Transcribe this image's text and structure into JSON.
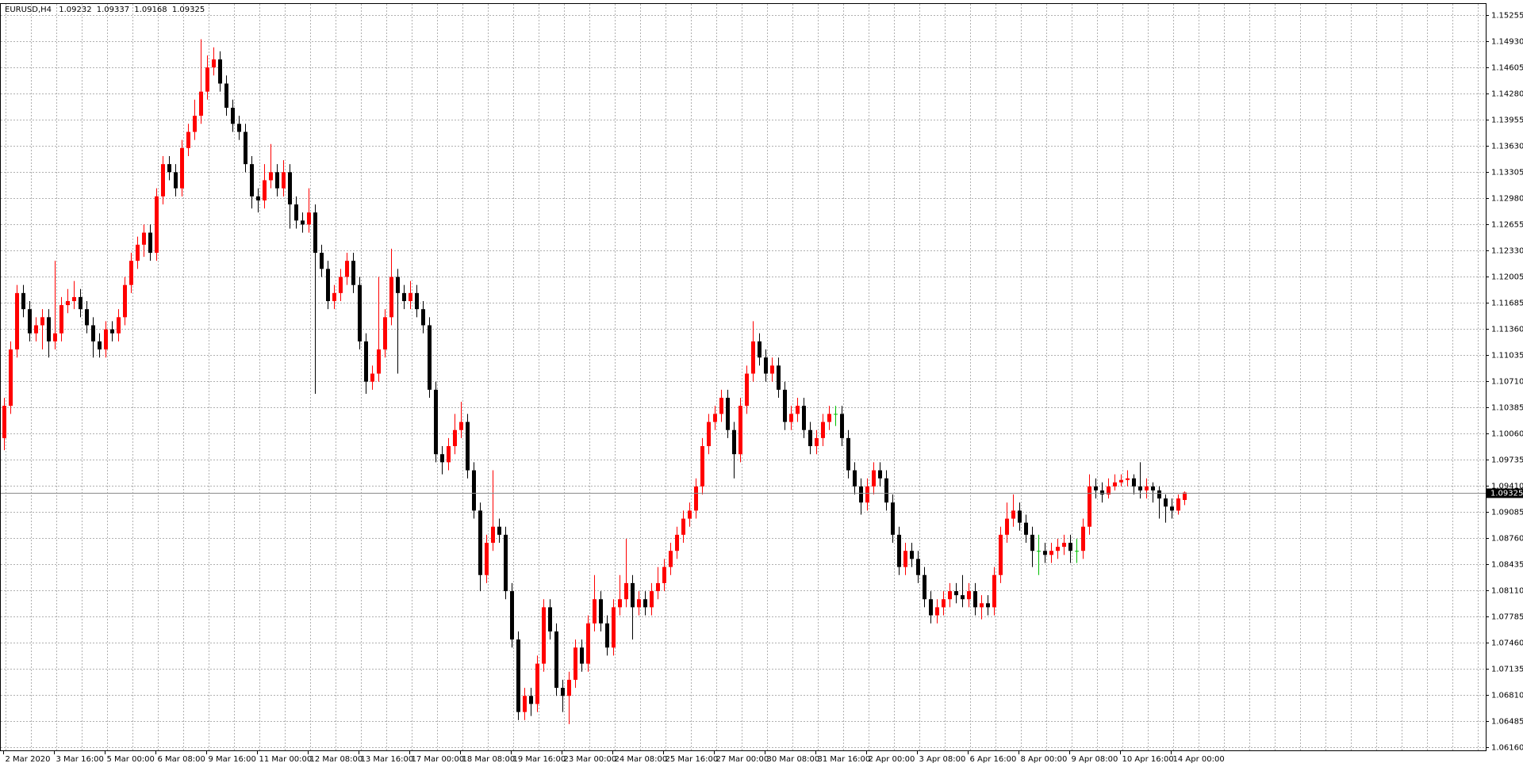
{
  "chart_data": {
    "type": "candlestick",
    "symbol": "EURUSD,H4",
    "up_color": "#ff0000",
    "down_color": "#000000",
    "doji_color": "#00c000",
    "grid": true,
    "ylim": [
      1.06124,
      1.15388
    ],
    "yticks": [
      1.15255,
      {
        "value": 1.1493,
        "label": "1.14930"
      },
      1.14605,
      {
        "value": 1.1428,
        "label": "1.14280"
      },
      1.13955,
      {
        "value": 1.1363,
        "label": "1.13630"
      },
      1.13305,
      {
        "value": 1.1298,
        "label": "1.12980"
      },
      1.12655,
      {
        "value": 1.1233,
        "label": "1.12330"
      },
      1.12005,
      1.11685,
      {
        "value": 1.1136,
        "label": "1.11360"
      },
      1.11035,
      {
        "value": 1.1071,
        "label": "1.10710"
      },
      1.10385,
      {
        "value": 1.1006,
        "label": "1.10060"
      },
      1.09735,
      {
        "value": 1.0941,
        "label": "1.09410"
      },
      1.09085,
      {
        "value": 1.0876,
        "label": "1.08760"
      },
      1.08435,
      {
        "value": 1.0811,
        "label": "1.08110"
      },
      1.07785,
      {
        "value": 1.0746,
        "label": "1.07460"
      },
      1.07135,
      {
        "value": 1.0681,
        "label": "1.06810"
      },
      1.06485,
      {
        "value": 1.0616,
        "label": "1.06160"
      }
    ],
    "categories": [
      "2 Mar 2020",
      null,
      null,
      null,
      null,
      null,
      null,
      null,
      "3 Mar 16:00",
      null,
      null,
      null,
      null,
      null,
      null,
      null,
      "5 Mar 00:00",
      null,
      null,
      null,
      null,
      null,
      null,
      null,
      "6 Mar 08:00",
      null,
      null,
      null,
      null,
      null,
      null,
      null,
      "9 Mar 16:00",
      null,
      null,
      null,
      null,
      null,
      null,
      null,
      "11 Mar 00:00",
      null,
      null,
      null,
      null,
      null,
      null,
      null,
      "12 Mar 08:00",
      null,
      null,
      null,
      null,
      null,
      null,
      null,
      "13 Mar 16:00",
      null,
      null,
      null,
      null,
      null,
      null,
      null,
      "17 Mar 00:00",
      null,
      null,
      null,
      null,
      null,
      null,
      null,
      "18 Mar 08:00",
      null,
      null,
      null,
      null,
      null,
      null,
      null,
      "19 Mar 16:00",
      null,
      null,
      null,
      null,
      null,
      null,
      null,
      "23 Mar 00:00",
      null,
      null,
      null,
      null,
      null,
      null,
      null,
      "24 Mar 08:00",
      null,
      null,
      null,
      null,
      null,
      null,
      null,
      "25 Mar 16:00",
      null,
      null,
      null,
      null,
      null,
      null,
      null,
      "27 Mar 00:00",
      null,
      null,
      null,
      null,
      null,
      null,
      null,
      "30 Mar 08:00",
      null,
      null,
      null,
      null,
      null,
      null,
      null,
      "31 Mar 16:00",
      null,
      null,
      null,
      null,
      null,
      null,
      null,
      "2 Apr 00:00",
      null,
      null,
      null,
      null,
      null,
      null,
      null,
      "3 Apr 08:00",
      null,
      null,
      null,
      null,
      null,
      null,
      null,
      "6 Apr 16:00",
      null,
      null,
      null,
      null,
      null,
      null,
      null,
      "8 Apr 00:00",
      null,
      null,
      null,
      null,
      null,
      null,
      null,
      "9 Apr 08:00",
      null,
      null,
      null,
      null,
      null,
      null,
      null,
      "10 Apr 16:00",
      null,
      null,
      null,
      null,
      null,
      null,
      null,
      "14 Apr 00:00",
      null,
      null
    ],
    "candles": [
      [
        1.1,
        1.105,
        1.0985,
        1.104
      ],
      [
        1.104,
        1.112,
        1.103,
        1.111
      ],
      [
        1.111,
        1.119,
        1.11,
        1.118
      ],
      [
        1.118,
        1.119,
        1.115,
        1.116
      ],
      [
        1.116,
        1.117,
        1.112,
        1.113
      ],
      [
        1.113,
        1.115,
        1.112,
        1.114
      ],
      [
        1.114,
        1.116,
        1.111,
        1.115
      ],
      [
        1.115,
        1.116,
        1.11,
        1.112
      ],
      [
        1.112,
        1.122,
        1.111,
        1.113
      ],
      [
        1.113,
        1.1175,
        1.112,
        1.1165
      ],
      [
        1.1165,
        1.1185,
        1.1155,
        1.117
      ],
      [
        1.117,
        1.1195,
        1.116,
        1.1175
      ],
      [
        1.1175,
        1.1185,
        1.115,
        1.116
      ],
      [
        1.116,
        1.117,
        1.113,
        1.114
      ],
      [
        1.114,
        1.115,
        1.11,
        1.112
      ],
      [
        1.112,
        1.113,
        1.11,
        1.111
      ],
      [
        1.111,
        1.1145,
        1.11,
        1.1135
      ],
      [
        1.1135,
        1.1145,
        1.112,
        1.113
      ],
      [
        1.113,
        1.116,
        1.112,
        1.115
      ],
      [
        1.115,
        1.12,
        1.114,
        1.119
      ],
      [
        1.119,
        1.123,
        1.118,
        1.122
      ],
      [
        1.122,
        1.125,
        1.121,
        1.124
      ],
      [
        1.124,
        1.1265,
        1.1225,
        1.1255
      ],
      [
        1.1255,
        1.1265,
        1.122,
        1.123
      ],
      [
        1.123,
        1.131,
        1.122,
        1.13
      ],
      [
        1.13,
        1.135,
        1.129,
        1.134
      ],
      [
        1.134,
        1.135,
        1.132,
        1.133
      ],
      [
        1.133,
        1.134,
        1.13,
        1.131
      ],
      [
        1.131,
        1.137,
        1.13,
        1.136
      ],
      [
        1.136,
        1.139,
        1.135,
        1.138
      ],
      [
        1.138,
        1.142,
        1.137,
        1.14
      ],
      [
        1.14,
        1.1495,
        1.139,
        1.143
      ],
      [
        1.143,
        1.1475,
        1.142,
        1.146
      ],
      [
        1.146,
        1.1485,
        1.145,
        1.147
      ],
      [
        1.147,
        1.148,
        1.143,
        1.144
      ],
      [
        1.144,
        1.145,
        1.14,
        1.141
      ],
      [
        1.141,
        1.142,
        1.138,
        1.139
      ],
      [
        1.139,
        1.14,
        1.137,
        1.138
      ],
      [
        1.138,
        1.139,
        1.133,
        1.134
      ],
      [
        1.134,
        1.135,
        1.1285,
        1.13
      ],
      [
        1.13,
        1.131,
        1.128,
        1.1295
      ],
      [
        1.1295,
        1.134,
        1.1285,
        1.132
      ],
      [
        1.132,
        1.1365,
        1.131,
        1.133
      ],
      [
        1.133,
        1.134,
        1.13,
        1.131
      ],
      [
        1.131,
        1.1345,
        1.13,
        1.133
      ],
      [
        1.133,
        1.134,
        1.126,
        1.129
      ],
      [
        1.129,
        1.13,
        1.126,
        1.127
      ],
      [
        1.127,
        1.128,
        1.1255,
        1.1265
      ],
      [
        1.1265,
        1.131,
        1.1255,
        1.128
      ],
      [
        1.128,
        1.129,
        1.1055,
        1.123
      ],
      [
        1.123,
        1.124,
        1.12,
        1.121
      ],
      [
        1.121,
        1.122,
        1.116,
        1.117
      ],
      [
        1.117,
        1.119,
        1.116,
        1.118
      ],
      [
        1.118,
        1.121,
        1.117,
        1.12
      ],
      [
        1.12,
        1.123,
        1.119,
        1.122
      ],
      [
        1.122,
        1.123,
        1.118,
        1.119
      ],
      [
        1.119,
        1.12,
        1.111,
        1.112
      ],
      [
        1.112,
        1.113,
        1.1055,
        1.107
      ],
      [
        1.107,
        1.109,
        1.106,
        1.108
      ],
      [
        1.108,
        1.12,
        1.107,
        1.111
      ],
      [
        1.111,
        1.116,
        1.11,
        1.115
      ],
      [
        1.115,
        1.1235,
        1.114,
        1.12
      ],
      [
        1.12,
        1.121,
        1.108,
        1.118
      ],
      [
        1.118,
        1.119,
        1.116,
        1.117
      ],
      [
        1.117,
        1.1195,
        1.116,
        1.118
      ],
      [
        1.118,
        1.119,
        1.115,
        1.116
      ],
      [
        1.116,
        1.117,
        1.113,
        1.114
      ],
      [
        1.114,
        1.115,
        1.105,
        1.106
      ],
      [
        1.106,
        1.107,
        1.097,
        1.098
      ],
      [
        1.098,
        1.099,
        1.0955,
        1.097
      ],
      [
        1.097,
        1.1,
        1.096,
        1.099
      ],
      [
        1.099,
        1.103,
        1.098,
        1.101
      ],
      [
        1.101,
        1.1045,
        1.1,
        1.102
      ],
      [
        1.102,
        1.103,
        1.095,
        1.096
      ],
      [
        1.096,
        1.097,
        1.09,
        1.091
      ],
      [
        1.091,
        1.092,
        1.081,
        1.083
      ],
      [
        1.083,
        1.088,
        1.082,
        1.087
      ],
      [
        1.087,
        1.096,
        1.086,
        1.089
      ],
      [
        1.089,
        1.09,
        1.087,
        1.088
      ],
      [
        1.088,
        1.089,
        1.08,
        1.081
      ],
      [
        1.081,
        1.082,
        1.074,
        1.075
      ],
      [
        1.075,
        1.076,
        1.065,
        1.066
      ],
      [
        1.066,
        1.069,
        1.065,
        1.068
      ],
      [
        1.068,
        1.069,
        1.0655,
        1.067
      ],
      [
        1.067,
        1.073,
        1.066,
        1.072
      ],
      [
        1.072,
        1.08,
        1.071,
        1.079
      ],
      [
        1.079,
        1.08,
        1.075,
        1.076
      ],
      [
        1.076,
        1.077,
        1.068,
        1.069
      ],
      [
        1.069,
        1.07,
        1.066,
        1.068
      ],
      [
        1.068,
        1.071,
        1.0645,
        1.07
      ],
      [
        1.07,
        1.075,
        1.069,
        1.074
      ],
      [
        1.074,
        1.075,
        1.071,
        1.072
      ],
      [
        1.072,
        1.078,
        1.071,
        1.077
      ],
      [
        1.077,
        1.083,
        1.076,
        1.08
      ],
      [
        1.08,
        1.081,
        1.076,
        1.077
      ],
      [
        1.077,
        1.078,
        1.073,
        1.074
      ],
      [
        1.074,
        1.08,
        1.073,
        1.079
      ],
      [
        1.079,
        1.083,
        1.078,
        1.08
      ],
      [
        1.08,
        1.0875,
        1.079,
        1.082
      ],
      [
        1.082,
        1.083,
        1.075,
        1.079
      ],
      [
        1.079,
        1.081,
        1.078,
        1.08
      ],
      [
        1.08,
        1.081,
        1.078,
        1.079
      ],
      [
        1.079,
        1.082,
        1.078,
        1.081
      ],
      [
        1.081,
        1.084,
        1.08,
        1.082
      ],
      [
        1.082,
        1.085,
        1.081,
        1.084
      ],
      [
        1.084,
        1.087,
        1.083,
        1.086
      ],
      [
        1.086,
        1.089,
        1.085,
        1.088
      ],
      [
        1.088,
        1.091,
        1.087,
        1.09
      ],
      [
        1.09,
        1.092,
        1.089,
        1.091
      ],
      [
        1.091,
        1.095,
        1.09,
        1.094
      ],
      [
        1.094,
        1.1,
        1.093,
        1.099
      ],
      [
        1.099,
        1.103,
        1.098,
        1.102
      ],
      [
        1.102,
        1.104,
        1.101,
        1.103
      ],
      [
        1.103,
        1.106,
        1.102,
        1.105
      ],
      [
        1.105,
        1.106,
        1.1,
        1.101
      ],
      [
        1.101,
        1.102,
        1.095,
        1.098
      ],
      [
        1.098,
        1.105,
        1.097,
        1.104
      ],
      [
        1.104,
        1.109,
        1.103,
        1.108
      ],
      [
        1.108,
        1.1145,
        1.107,
        1.112
      ],
      [
        1.112,
        1.113,
        1.109,
        1.11
      ],
      [
        1.11,
        1.111,
        1.107,
        1.108
      ],
      [
        1.108,
        1.11,
        1.107,
        1.109
      ],
      [
        1.109,
        1.11,
        1.105,
        1.106
      ],
      [
        1.106,
        1.107,
        1.101,
        1.102
      ],
      [
        1.102,
        1.104,
        1.101,
        1.103
      ],
      [
        1.103,
        1.105,
        1.102,
        1.104
      ],
      [
        1.104,
        1.105,
        1.1,
        1.101
      ],
      [
        1.101,
        1.102,
        1.098,
        1.099
      ],
      [
        1.099,
        1.101,
        1.098,
        1.1
      ],
      [
        1.1,
        1.103,
        1.099,
        1.102
      ],
      [
        1.102,
        1.104,
        1.101,
        1.103
      ],
      [
        1.103,
        1.104,
        1.1015,
        1.103
      ],
      [
        1.103,
        1.104,
        1.099,
        1.1
      ],
      [
        1.1,
        1.101,
        1.095,
        1.096
      ],
      [
        1.096,
        1.097,
        1.093,
        1.094
      ],
      [
        1.094,
        1.095,
        1.0905,
        1.092
      ],
      [
        1.092,
        1.095,
        1.091,
        1.094
      ],
      [
        1.094,
        1.097,
        1.093,
        1.096
      ],
      [
        1.096,
        1.097,
        1.094,
        1.095
      ],
      [
        1.095,
        1.096,
        1.091,
        1.092
      ],
      [
        1.092,
        1.093,
        1.087,
        1.088
      ],
      [
        1.088,
        1.089,
        1.083,
        1.084
      ],
      [
        1.084,
        1.087,
        1.083,
        1.086
      ],
      [
        1.086,
        1.087,
        1.084,
        1.085
      ],
      [
        1.085,
        1.086,
        1.082,
        1.083
      ],
      [
        1.083,
        1.084,
        1.079,
        1.08
      ],
      [
        1.08,
        1.081,
        1.077,
        1.078
      ],
      [
        1.078,
        1.08,
        1.077,
        1.079
      ],
      [
        1.079,
        1.081,
        1.078,
        1.08
      ],
      [
        1.08,
        1.082,
        1.079,
        1.081
      ],
      [
        1.081,
        1.082,
        1.0795,
        1.0805
      ],
      [
        1.0805,
        1.083,
        1.079,
        1.08
      ],
      [
        1.08,
        1.082,
        1.079,
        1.081
      ],
      [
        1.081,
        1.082,
        1.078,
        1.079
      ],
      [
        1.079,
        1.0805,
        1.0775,
        1.0795
      ],
      [
        1.0795,
        1.0805,
        1.078,
        1.079
      ],
      [
        1.079,
        1.084,
        1.078,
        1.083
      ],
      [
        1.083,
        1.089,
        1.082,
        1.088
      ],
      [
        1.088,
        1.092,
        1.087,
        1.09
      ],
      [
        1.09,
        1.093,
        1.089,
        1.091
      ],
      [
        1.091,
        1.092,
        1.0885,
        1.0895
      ],
      [
        1.0895,
        1.0905,
        1.087,
        1.088
      ],
      [
        1.088,
        1.089,
        1.084,
        1.086
      ],
      [
        1.086,
        1.088,
        1.083,
        1.086
      ],
      [
        1.086,
        1.087,
        1.0845,
        1.0855
      ],
      [
        1.0855,
        1.087,
        1.0845,
        1.086
      ],
      [
        1.086,
        1.0875,
        1.085,
        1.0865
      ],
      [
        1.0865,
        1.088,
        1.0855,
        1.087
      ],
      [
        1.087,
        1.088,
        1.0845,
        1.086
      ],
      [
        1.086,
        1.0875,
        1.0845,
        1.086
      ],
      [
        1.086,
        1.09,
        1.085,
        1.089
      ],
      [
        1.089,
        1.0955,
        1.088,
        1.094
      ],
      [
        1.094,
        1.095,
        1.0925,
        1.0935
      ],
      [
        1.0935,
        1.0945,
        1.092,
        1.093
      ],
      [
        1.093,
        1.095,
        1.0925,
        1.094
      ],
      [
        1.094,
        1.0955,
        1.0935,
        1.0945
      ],
      [
        1.0945,
        1.0955,
        1.094,
        1.0948
      ],
      [
        1.0948,
        1.096,
        1.094,
        1.095
      ],
      [
        1.095,
        1.0955,
        1.093,
        1.094
      ],
      [
        1.094,
        1.097,
        1.0925,
        1.0935
      ],
      [
        1.0935,
        1.095,
        1.0925,
        1.094
      ],
      [
        1.094,
        1.0945,
        1.092,
        1.0935
      ],
      [
        1.0935,
        1.094,
        1.09,
        1.0925
      ],
      [
        1.0925,
        1.093,
        1.0895,
        1.0915
      ],
      [
        1.0915,
        1.0925,
        1.09,
        1.091
      ],
      [
        1.091,
        1.093,
        1.0905,
        1.0925
      ],
      [
        1.09232,
        1.09337,
        1.09168,
        1.09325
      ]
    ]
  }
}
